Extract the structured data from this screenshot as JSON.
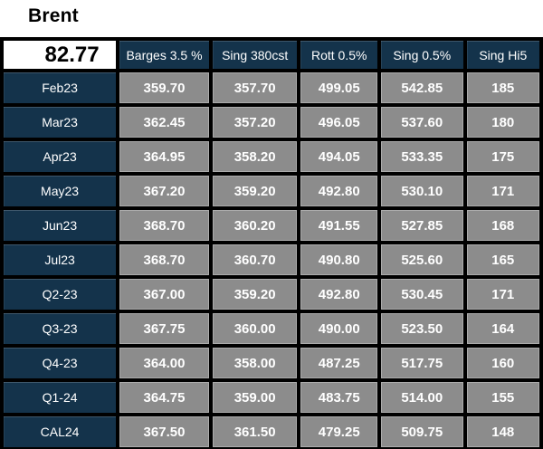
{
  "brent": {
    "label": "Brent",
    "price": "82.77"
  },
  "table": {
    "columns": [
      "Barges 3.5 %",
      "Sing 380cst",
      "Rott 0.5%",
      "Sing 0.5%",
      "Sing Hi5"
    ],
    "rows": [
      {
        "label": "Feb23",
        "values": [
          "359.70",
          "357.70",
          "499.05",
          "542.85",
          "185"
        ]
      },
      {
        "label": "Mar23",
        "values": [
          "362.45",
          "357.20",
          "496.05",
          "537.60",
          "180"
        ]
      },
      {
        "label": "Apr23",
        "values": [
          "364.95",
          "358.20",
          "494.05",
          "533.35",
          "175"
        ]
      },
      {
        "label": "May23",
        "values": [
          "367.20",
          "359.20",
          "492.80",
          "530.10",
          "171"
        ]
      },
      {
        "label": "Jun23",
        "values": [
          "368.70",
          "360.20",
          "491.55",
          "527.85",
          "168"
        ]
      },
      {
        "label": "Jul23",
        "values": [
          "368.70",
          "360.70",
          "490.80",
          "525.60",
          "165"
        ]
      },
      {
        "label": "Q2-23",
        "values": [
          "367.00",
          "359.20",
          "492.80",
          "530.45",
          "171"
        ]
      },
      {
        "label": "Q3-23",
        "values": [
          "367.75",
          "360.00",
          "490.00",
          "523.50",
          "164"
        ]
      },
      {
        "label": "Q4-23",
        "values": [
          "364.00",
          "358.00",
          "487.25",
          "517.75",
          "160"
        ]
      },
      {
        "label": "Q1-24",
        "values": [
          "364.75",
          "359.00",
          "483.75",
          "514.00",
          "155"
        ]
      },
      {
        "label": "CAL24",
        "values": [
          "367.50",
          "361.50",
          "479.25",
          "509.75",
          "148"
        ]
      }
    ]
  },
  "colors": {
    "navy": "#14334B",
    "cell_gray": "#8C8C8C",
    "border": "#000000",
    "text_light": "#FFFFFF",
    "text_dark": "#000000"
  }
}
